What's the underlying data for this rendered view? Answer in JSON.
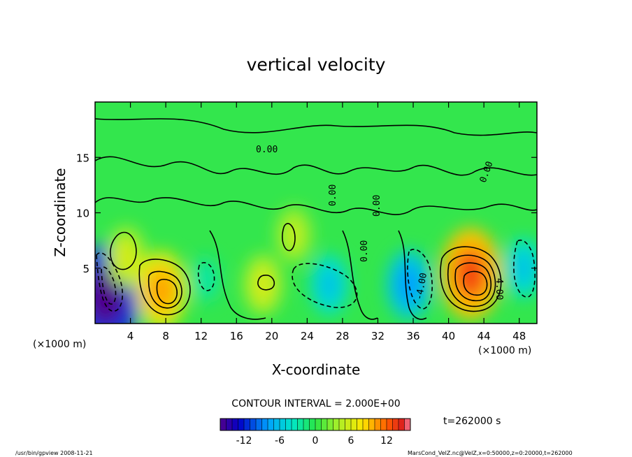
{
  "chart_data": {
    "type": "heatmap",
    "title": "vertical velocity",
    "xlabel": "X-coordinate",
    "ylabel": "Z-coordinate",
    "x_unit": "(×1000 m)",
    "y_unit": "(×1000 m)",
    "xlim": [
      0,
      50
    ],
    "ylim": [
      0,
      20
    ],
    "x_ticks": [
      4,
      8,
      12,
      16,
      20,
      24,
      28,
      32,
      36,
      40,
      44,
      48
    ],
    "y_ticks": [
      5,
      10,
      15
    ],
    "contour_interval_label": "CONTOUR INTERVAL = 2.000E+00",
    "contour_labels": [
      "0.00",
      "0.00",
      "0.00",
      "0.00",
      "0.00",
      "-4.00",
      "4.00"
    ],
    "time_label": "t=262000 s",
    "colorbar": {
      "min": -16,
      "max": 16,
      "step": 1,
      "ticks": [
        -12,
        -6,
        0,
        6,
        12
      ]
    },
    "features": [
      {
        "x": 1.2,
        "z": 2.5,
        "value": -16
      },
      {
        "x": 3.5,
        "z": 6.0,
        "value": 6
      },
      {
        "x": 7.5,
        "z": 3.0,
        "value": 10
      },
      {
        "x": 12.5,
        "z": 4.0,
        "value": -3
      },
      {
        "x": 19.0,
        "z": 3.5,
        "value": 6
      },
      {
        "x": 22.5,
        "z": 8.0,
        "value": 5
      },
      {
        "x": 26.5,
        "z": 3.5,
        "value": -6
      },
      {
        "x": 35.5,
        "z": 3.5,
        "value": -8
      },
      {
        "x": 42.5,
        "z": 4.5,
        "value": 13
      },
      {
        "x": 48.5,
        "z": 5.0,
        "value": -6
      }
    ]
  },
  "footer": {
    "left": "/usr/bin/gpview   2008-11-21",
    "right": "MarsCond_VelZ.nc@VelZ,x=0:50000,z=0:20000,t=262000"
  }
}
